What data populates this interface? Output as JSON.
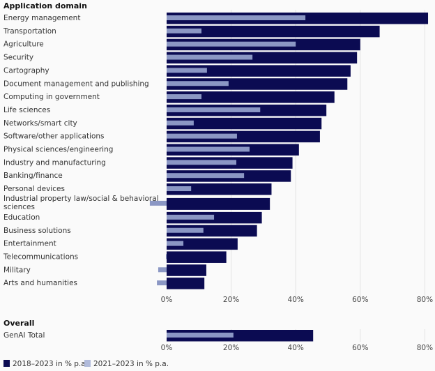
{
  "chart_data": {
    "type": "bar",
    "orientation": "horizontal",
    "xlim": [
      -5,
      82
    ],
    "ticks": [
      0,
      20,
      40,
      60,
      80
    ],
    "tick_format": "{v}%",
    "grid": true,
    "legend_position": "bottom-left",
    "colors": {
      "series1": "#0b0b52",
      "series2": "#8b97c4",
      "grid": "#e3e3e3",
      "background": "#fafafa"
    },
    "series": [
      {
        "name": "2018–2023 in % p.a.",
        "key": "a"
      },
      {
        "name": "2021–2023 in % p.a.",
        "key": "b"
      }
    ],
    "sections": [
      {
        "title": "Application domain",
        "categories": [
          "Energy management",
          "Transportation",
          "Agriculture",
          "Security",
          "Cartography",
          "Document management and publishing",
          "Computing in government",
          "Life sciences",
          "Networks/smart city",
          "Software/other applications",
          "Physical sciences/engineering",
          "Industry and manufacturing",
          "Banking/finance",
          "Personal devices",
          "Industrial property law/social & behavioral sciences",
          "Education",
          "Business solutions",
          "Entertainment",
          "Telecommunications",
          "Military",
          "Arts and humanities"
        ],
        "values_a": [
          81,
          66,
          60,
          59,
          57,
          56,
          52,
          49.5,
          48,
          47.5,
          41,
          39,
          38.5,
          32.5,
          32,
          29.5,
          28,
          22,
          18.5,
          12.3,
          11.7
        ],
        "values_b": [
          43,
          10.8,
          40,
          26.6,
          12.5,
          19.2,
          10.8,
          29,
          8.4,
          21.8,
          25.7,
          21.6,
          24,
          7.6,
          -5.2,
          14.7,
          11.4,
          5.2,
          -0.2,
          -2.6,
          -3
        ]
      },
      {
        "title": "Overall",
        "categories": [
          "GenAI Total"
        ],
        "values_a": [
          45.4
        ],
        "values_b": [
          20.7
        ]
      }
    ]
  }
}
